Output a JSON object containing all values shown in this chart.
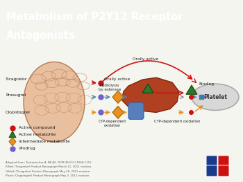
{
  "title_line1": "Metabolism of P2Y12 Receptor",
  "title_line2": "Antagonists",
  "title_bg": "#2e3b8e",
  "title_color": "#ffffff",
  "bg_color": "#f5f5f0",
  "drug_labels": [
    "Ticagrelor",
    "Prasugrel",
    "Clopidogrel"
  ],
  "annotations": {
    "orally_active_top": "Orally active",
    "orally_active_mid": "Orally active",
    "hydrolysis": "Hydrolysis\nby esterase",
    "cyp_left": "CYP-dependent\noxidation",
    "cyp_right": "CYP-dependent oxidation",
    "binding": "Binding",
    "platelet": "Platelet"
  },
  "legend_items": [
    {
      "label": "Active compound",
      "color": "#cc1111",
      "shape": "circle"
    },
    {
      "label": "Active metabolite",
      "color": "#2a7a2a",
      "shape": "triangle"
    },
    {
      "label": "Intermediate metabolite",
      "color": "#e89020",
      "shape": "diamond"
    },
    {
      "label": "Prodrug",
      "color": "#7060cc",
      "shape": "circle"
    }
  ],
  "footnote_lines": [
    "Adapted from: Tschentscher A. NE JM. 2009;361(11):1068-1111.",
    "Elliott (Ticagrelor) Product Monograph March 11, 2011 revision.",
    "Hildick (Ticagrelor) Product Monograph May 26, 2011 revision.",
    "Plavix (Clopidogrel) Product Monograph May 3, 2011 revision."
  ],
  "red": "#cc1111",
  "orange": "#e89020",
  "blue": "#5588aa",
  "gray": "#888888",
  "gut_face": "#e8c0a0",
  "gut_edge": "#b87850",
  "liver_face": "#b04020",
  "liver_edge": "#7a2808",
  "gb_face": "#5580bb",
  "platelet_face": "#d8d8d8",
  "platelet_edge": "#aaaaaa"
}
